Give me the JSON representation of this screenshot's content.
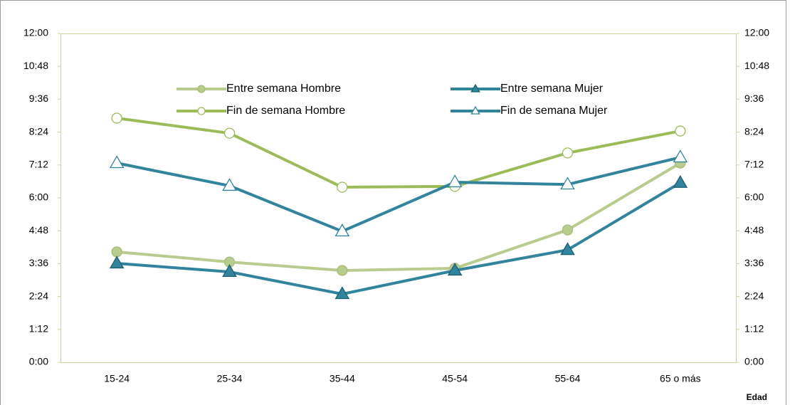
{
  "chart_data": {
    "type": "line",
    "x_label": "Edad",
    "categories": [
      "15-24",
      "25-34",
      "35-44",
      "45-54",
      "55-64",
      "65 o más"
    ],
    "series": [
      {
        "name": "Entre semana Hombre",
        "color": "#b8cc8e",
        "marker": "circle",
        "filled": true,
        "values": [
          4.03,
          3.66,
          3.35,
          3.43,
          4.83,
          7.27
        ]
      },
      {
        "name": "Entre semana Mujer",
        "color": "#31849b",
        "marker": "triangle",
        "filled": true,
        "values": [
          3.61,
          3.3,
          2.49,
          3.35,
          4.1,
          6.55
        ]
      },
      {
        "name": "Fin de semana Hombre",
        "color": "#9bbb59",
        "marker": "circle",
        "filled": false,
        "values": [
          8.91,
          8.36,
          6.39,
          6.42,
          7.64,
          8.44
        ]
      },
      {
        "name": "Fin de semana Mujer",
        "color": "#31849b",
        "marker": "triangle",
        "filled": false,
        "values": [
          7.27,
          6.44,
          4.78,
          6.57,
          6.49,
          7.48
        ]
      }
    ],
    "ylim": [
      0,
      12
    ],
    "yticks": [
      {
        "value": 0,
        "label": "0:00"
      },
      {
        "value": 1.2,
        "label": "1:12"
      },
      {
        "value": 2.4,
        "label": "2:24"
      },
      {
        "value": 3.6,
        "label": "3:36"
      },
      {
        "value": 4.8,
        "label": "4:48"
      },
      {
        "value": 6,
        "label": "6:00"
      },
      {
        "value": 7.2,
        "label": "7:12"
      },
      {
        "value": 8.4,
        "label": "8:24"
      },
      {
        "value": 9.6,
        "label": "9:36"
      },
      {
        "value": 10.8,
        "label": "10:48"
      },
      {
        "value": 12,
        "label": "12:00"
      }
    ],
    "y2lim": [
      0,
      12
    ],
    "y2ticks": [
      {
        "value": 0,
        "label": "0:00"
      },
      {
        "value": 1.2,
        "label": "1:12"
      },
      {
        "value": 2.4,
        "label": "2:24"
      },
      {
        "value": 3.6,
        "label": "3:36"
      },
      {
        "value": 4.8,
        "label": "4:48"
      },
      {
        "value": 6,
        "label": "6:00"
      },
      {
        "value": 7.2,
        "label": "7:12"
      },
      {
        "value": 8.4,
        "label": "8:24"
      },
      {
        "value": 9.6,
        "label": "9:36"
      },
      {
        "value": 10.8,
        "label": "10:48"
      },
      {
        "value": 12,
        "label": "12:00"
      }
    ],
    "grid": false
  }
}
